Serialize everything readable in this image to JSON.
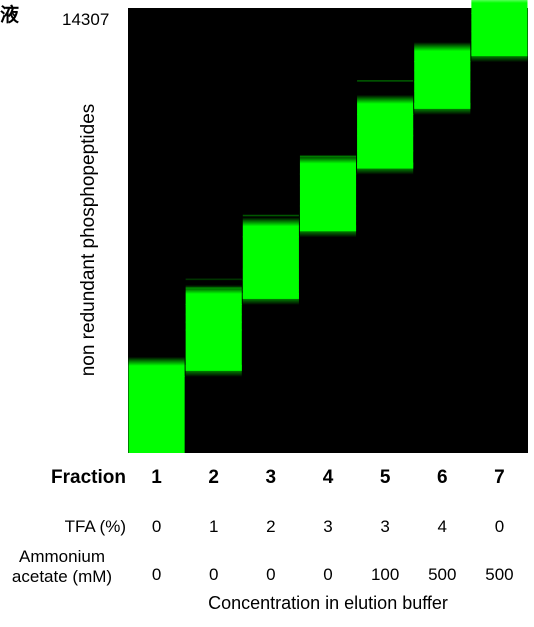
{
  "corner_text": "液",
  "chart_data": {
    "type": "heatmap",
    "ymax_label": "14307",
    "ylabel": "non redundant phosphopeptides",
    "colors": {
      "signal": "#00ff00",
      "background": "#000000"
    },
    "fractions": [
      "1",
      "2",
      "3",
      "4",
      "5",
      "6",
      "7"
    ],
    "main_block_bounds": [
      [
        0,
        2641
      ],
      [
        2641,
        4954
      ],
      [
        4954,
        7128
      ],
      [
        7128,
        9145
      ],
      [
        9145,
        11064
      ],
      [
        11064,
        12759
      ],
      [
        12759,
        14307
      ]
    ],
    "faint_band_positions": [
      [],
      [
        3980,
        4230,
        4480,
        4730,
        5330,
        5610
      ],
      [
        5270,
        5590,
        5930,
        7660
      ],
      [
        7490,
        7970,
        8630,
        9560
      ],
      [
        9740,
        10230,
        10440,
        11990
      ],
      [
        11660,
        11960,
        12320
      ],
      [
        13290,
        13580,
        13950
      ]
    ]
  },
  "table": {
    "header_label": "Fraction",
    "rows": [
      {
        "label": "TFA (%)",
        "values": [
          "0",
          "1",
          "2",
          "3",
          "3",
          "4",
          "0"
        ]
      },
      {
        "label_line1": "Ammonium",
        "label_line2": "acetate (mM)",
        "values": [
          "0",
          "0",
          "0",
          "0",
          "100",
          "500",
          "500"
        ]
      }
    ],
    "footer": "Concentration in elution buffer"
  }
}
